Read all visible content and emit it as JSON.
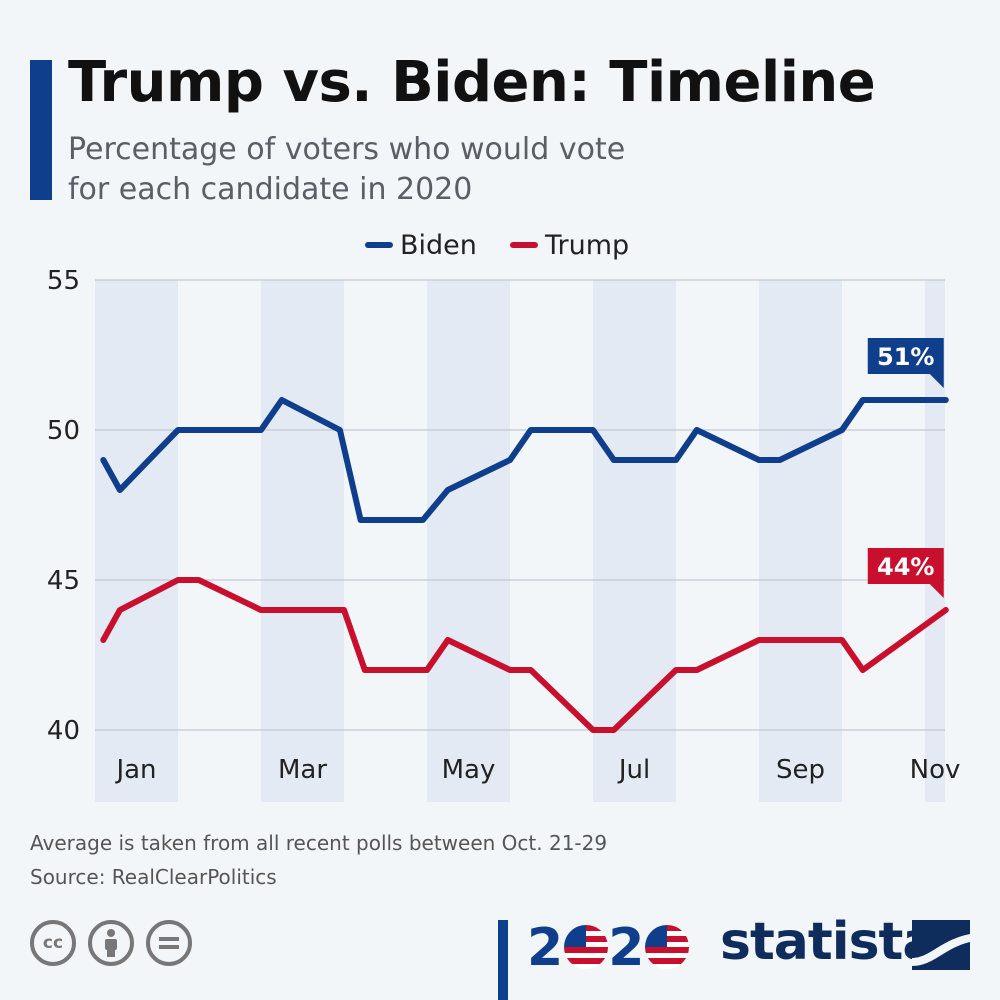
{
  "header": {
    "title": "Trump vs. Biden: Timeline",
    "subtitle": "Percentage of voters who would vote for each candidate in 2020"
  },
  "chart_data": {
    "type": "line",
    "title": "Trump vs. Biden: Timeline",
    "subtitle": "Percentage of voters who would vote for each candidate in 2020",
    "xlabel": "",
    "ylabel": "",
    "ylim": [
      40,
      55
    ],
    "yticks": [
      40,
      45,
      50,
      55
    ],
    "month_labels": [
      "Jan",
      "Mar",
      "May",
      "Jul",
      "Sep",
      "Nov"
    ],
    "x_range_months": [
      0.1,
      10.3
    ],
    "grid": "horizontal",
    "legend_position": "top-center",
    "series": [
      {
        "name": "Biden",
        "color": "#0f3e8c",
        "end_label": "51%",
        "points": [
          {
            "m": 0.1,
            "v": 49
          },
          {
            "m": 0.3,
            "v": 48
          },
          {
            "m": 1.0,
            "v": 50
          },
          {
            "m": 2.0,
            "v": 50
          },
          {
            "m": 2.25,
            "v": 51
          },
          {
            "m": 2.95,
            "v": 50
          },
          {
            "m": 3.2,
            "v": 47
          },
          {
            "m": 3.95,
            "v": 47
          },
          {
            "m": 4.25,
            "v": 48
          },
          {
            "m": 5.0,
            "v": 49
          },
          {
            "m": 5.25,
            "v": 50
          },
          {
            "m": 6.0,
            "v": 50
          },
          {
            "m": 6.25,
            "v": 49
          },
          {
            "m": 7.0,
            "v": 49
          },
          {
            "m": 7.25,
            "v": 50
          },
          {
            "m": 8.0,
            "v": 49
          },
          {
            "m": 8.25,
            "v": 49
          },
          {
            "m": 9.0,
            "v": 50
          },
          {
            "m": 9.25,
            "v": 51
          },
          {
            "m": 10.25,
            "v": 51
          }
        ]
      },
      {
        "name": "Trump",
        "color": "#c8102e",
        "end_label": "44%",
        "points": [
          {
            "m": 0.1,
            "v": 43
          },
          {
            "m": 0.3,
            "v": 44
          },
          {
            "m": 1.0,
            "v": 45
          },
          {
            "m": 1.25,
            "v": 45
          },
          {
            "m": 2.0,
            "v": 44
          },
          {
            "m": 3.0,
            "v": 44
          },
          {
            "m": 3.25,
            "v": 42
          },
          {
            "m": 4.0,
            "v": 42
          },
          {
            "m": 4.25,
            "v": 43
          },
          {
            "m": 5.0,
            "v": 42
          },
          {
            "m": 5.25,
            "v": 42
          },
          {
            "m": 6.0,
            "v": 40
          },
          {
            "m": 6.25,
            "v": 40
          },
          {
            "m": 7.0,
            "v": 42
          },
          {
            "m": 7.25,
            "v": 42
          },
          {
            "m": 8.0,
            "v": 43
          },
          {
            "m": 9.0,
            "v": 43
          },
          {
            "m": 9.25,
            "v": 42
          },
          {
            "m": 10.25,
            "v": 44
          }
        ]
      }
    ]
  },
  "footer": {
    "note": "Average is taken from all recent polls between Oct. 21-29",
    "source": "Source: RealClearPolitics"
  },
  "license_icons": [
    "cc-icon",
    "by-person-icon",
    "nd-equals-icon"
  ],
  "license_glyphs": [
    "cc",
    "=",
    "🯅"
  ],
  "logo_2020": {
    "d1": "2",
    "d2": "2"
  },
  "brand": {
    "name": "statista"
  }
}
